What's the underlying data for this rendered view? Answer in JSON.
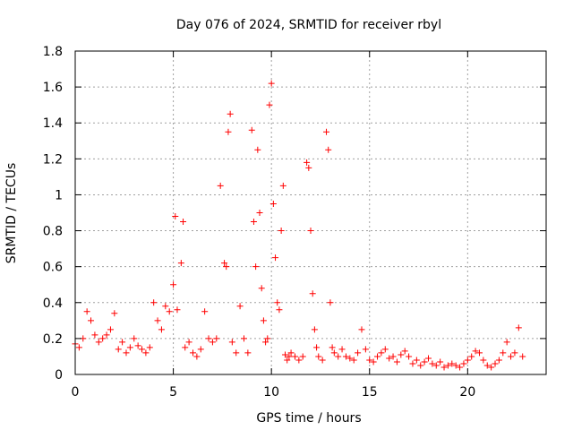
{
  "chart_data": {
    "type": "scatter",
    "title": "Day 076 of 2024, SRMTID for receiver rbyl",
    "xlabel": "GPS time / hours",
    "ylabel": "SRMTID / TECUs",
    "xlim": [
      0,
      24
    ],
    "ylim": [
      0,
      1.8
    ],
    "x_ticks": [
      0,
      5,
      10,
      15,
      20
    ],
    "x_tick_labels": [
      "0",
      "5",
      "10",
      "15",
      "20"
    ],
    "y_ticks": [
      0,
      0.2,
      0.4,
      0.6,
      0.8,
      1.0,
      1.2,
      1.4,
      1.6,
      1.8
    ],
    "y_tick_labels": [
      "0",
      "0.2",
      "0.4",
      "0.6",
      "0.8",
      "1",
      "1.2",
      "1.4",
      "1.6",
      "1.8"
    ],
    "grid": true,
    "marker": "+",
    "series": [
      {
        "name": "SRMTID",
        "color": "#ff0000",
        "x": [
          0.0,
          0.2,
          0.4,
          0.6,
          0.8,
          1.0,
          1.2,
          1.4,
          1.6,
          1.8,
          2.0,
          2.2,
          2.4,
          2.6,
          2.8,
          3.0,
          3.2,
          3.4,
          3.6,
          3.8,
          4.0,
          4.2,
          4.4,
          4.6,
          4.8,
          5.0,
          5.1,
          5.2,
          5.4,
          5.5,
          5.6,
          5.8,
          6.0,
          6.2,
          6.4,
          6.6,
          6.8,
          7.0,
          7.2,
          7.4,
          7.6,
          7.7,
          7.8,
          7.9,
          8.0,
          8.2,
          8.4,
          8.6,
          8.8,
          9.0,
          9.1,
          9.2,
          9.3,
          9.4,
          9.5,
          9.6,
          9.7,
          9.8,
          9.9,
          10.0,
          10.1,
          10.2,
          10.3,
          10.4,
          10.5,
          10.6,
          10.7,
          10.8,
          10.9,
          11.0,
          11.2,
          11.4,
          11.6,
          11.8,
          11.9,
          12.0,
          12.1,
          12.2,
          12.3,
          12.4,
          12.6,
          12.8,
          12.9,
          13.0,
          13.1,
          13.2,
          13.4,
          13.6,
          13.8,
          14.0,
          14.2,
          14.4,
          14.6,
          14.8,
          15.0,
          15.2,
          15.4,
          15.6,
          15.8,
          16.0,
          16.2,
          16.4,
          16.6,
          16.8,
          17.0,
          17.2,
          17.4,
          17.6,
          17.8,
          18.0,
          18.2,
          18.4,
          18.6,
          18.8,
          19.0,
          19.2,
          19.4,
          19.6,
          19.8,
          20.0,
          20.2,
          20.4,
          20.6,
          20.8,
          21.0,
          21.2,
          21.4,
          21.6,
          21.8,
          22.0,
          22.2,
          22.4,
          22.6,
          22.8
        ],
        "y": [
          0.17,
          0.15,
          0.2,
          0.35,
          0.3,
          0.22,
          0.18,
          0.2,
          0.22,
          0.25,
          0.34,
          0.14,
          0.18,
          0.12,
          0.15,
          0.2,
          0.16,
          0.14,
          0.12,
          0.15,
          0.4,
          0.3,
          0.25,
          0.38,
          0.35,
          0.5,
          0.88,
          0.36,
          0.62,
          0.85,
          0.15,
          0.18,
          0.12,
          0.1,
          0.14,
          0.35,
          0.2,
          0.18,
          0.2,
          1.05,
          0.62,
          0.6,
          1.35,
          1.45,
          0.18,
          0.12,
          0.38,
          0.2,
          0.12,
          1.36,
          0.85,
          0.6,
          1.25,
          0.9,
          0.48,
          0.3,
          0.18,
          0.2,
          1.5,
          1.62,
          0.95,
          0.65,
          0.4,
          0.36,
          0.8,
          1.05,
          0.11,
          0.08,
          0.1,
          0.12,
          0.1,
          0.08,
          0.1,
          1.18,
          1.15,
          0.8,
          0.45,
          0.25,
          0.15,
          0.1,
          0.08,
          1.35,
          1.25,
          0.4,
          0.15,
          0.12,
          0.1,
          0.14,
          0.1,
          0.09,
          0.08,
          0.12,
          0.25,
          0.14,
          0.08,
          0.07,
          0.1,
          0.12,
          0.14,
          0.09,
          0.1,
          0.07,
          0.11,
          0.13,
          0.1,
          0.06,
          0.08,
          0.05,
          0.07,
          0.09,
          0.06,
          0.05,
          0.07,
          0.04,
          0.05,
          0.06,
          0.05,
          0.04,
          0.06,
          0.08,
          0.1,
          0.13,
          0.12,
          0.08,
          0.05,
          0.04,
          0.06,
          0.08,
          0.12,
          0.18,
          0.1,
          0.12,
          0.26,
          0.1
        ]
      }
    ]
  }
}
